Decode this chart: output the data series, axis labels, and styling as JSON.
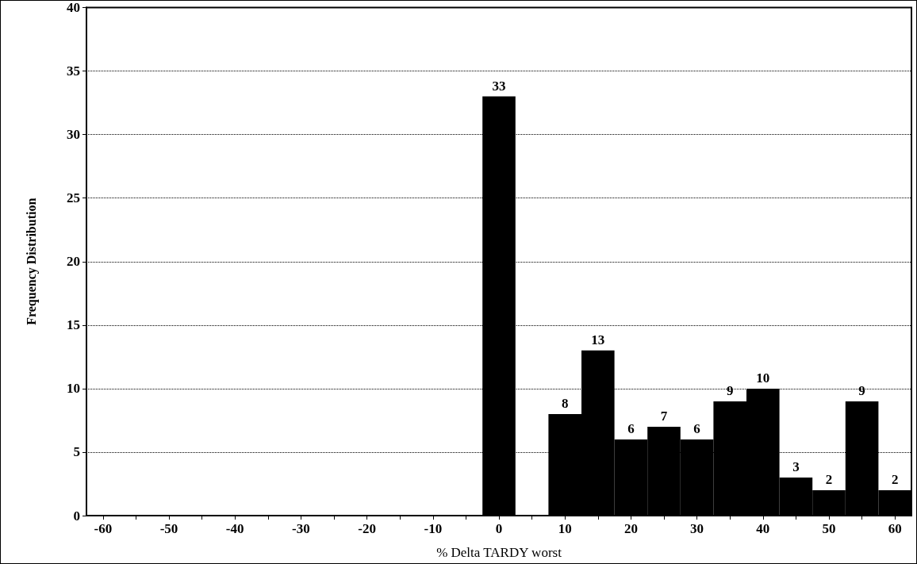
{
  "chart_data": {
    "type": "bar",
    "xlabel": "% Delta TARDY worst",
    "ylabel": "Frequency Distribution",
    "categories": [
      "-60",
      null,
      "-50",
      null,
      "-40",
      null,
      "-30",
      null,
      "-20",
      null,
      "-10",
      null,
      "0",
      null,
      "10",
      null,
      "20",
      null,
      "30",
      null,
      "40",
      null,
      "50",
      null,
      "60"
    ],
    "values": [
      0,
      0,
      0,
      0,
      0,
      0,
      0,
      0,
      0,
      0,
      0,
      0,
      33,
      0,
      8,
      13,
      6,
      7,
      6,
      9,
      10,
      3,
      2,
      9,
      2
    ],
    "value_labels": [
      null,
      null,
      null,
      null,
      null,
      null,
      null,
      null,
      null,
      null,
      null,
      null,
      "33",
      null,
      "8",
      "13",
      "6",
      "7",
      "6",
      "9",
      "10",
      "3",
      "2",
      "9",
      "2"
    ],
    "color": "#000000",
    "ylim": [
      0,
      40
    ],
    "yticks": [
      0,
      5,
      10,
      15,
      20,
      25,
      30,
      35,
      40
    ],
    "grid": "y"
  }
}
